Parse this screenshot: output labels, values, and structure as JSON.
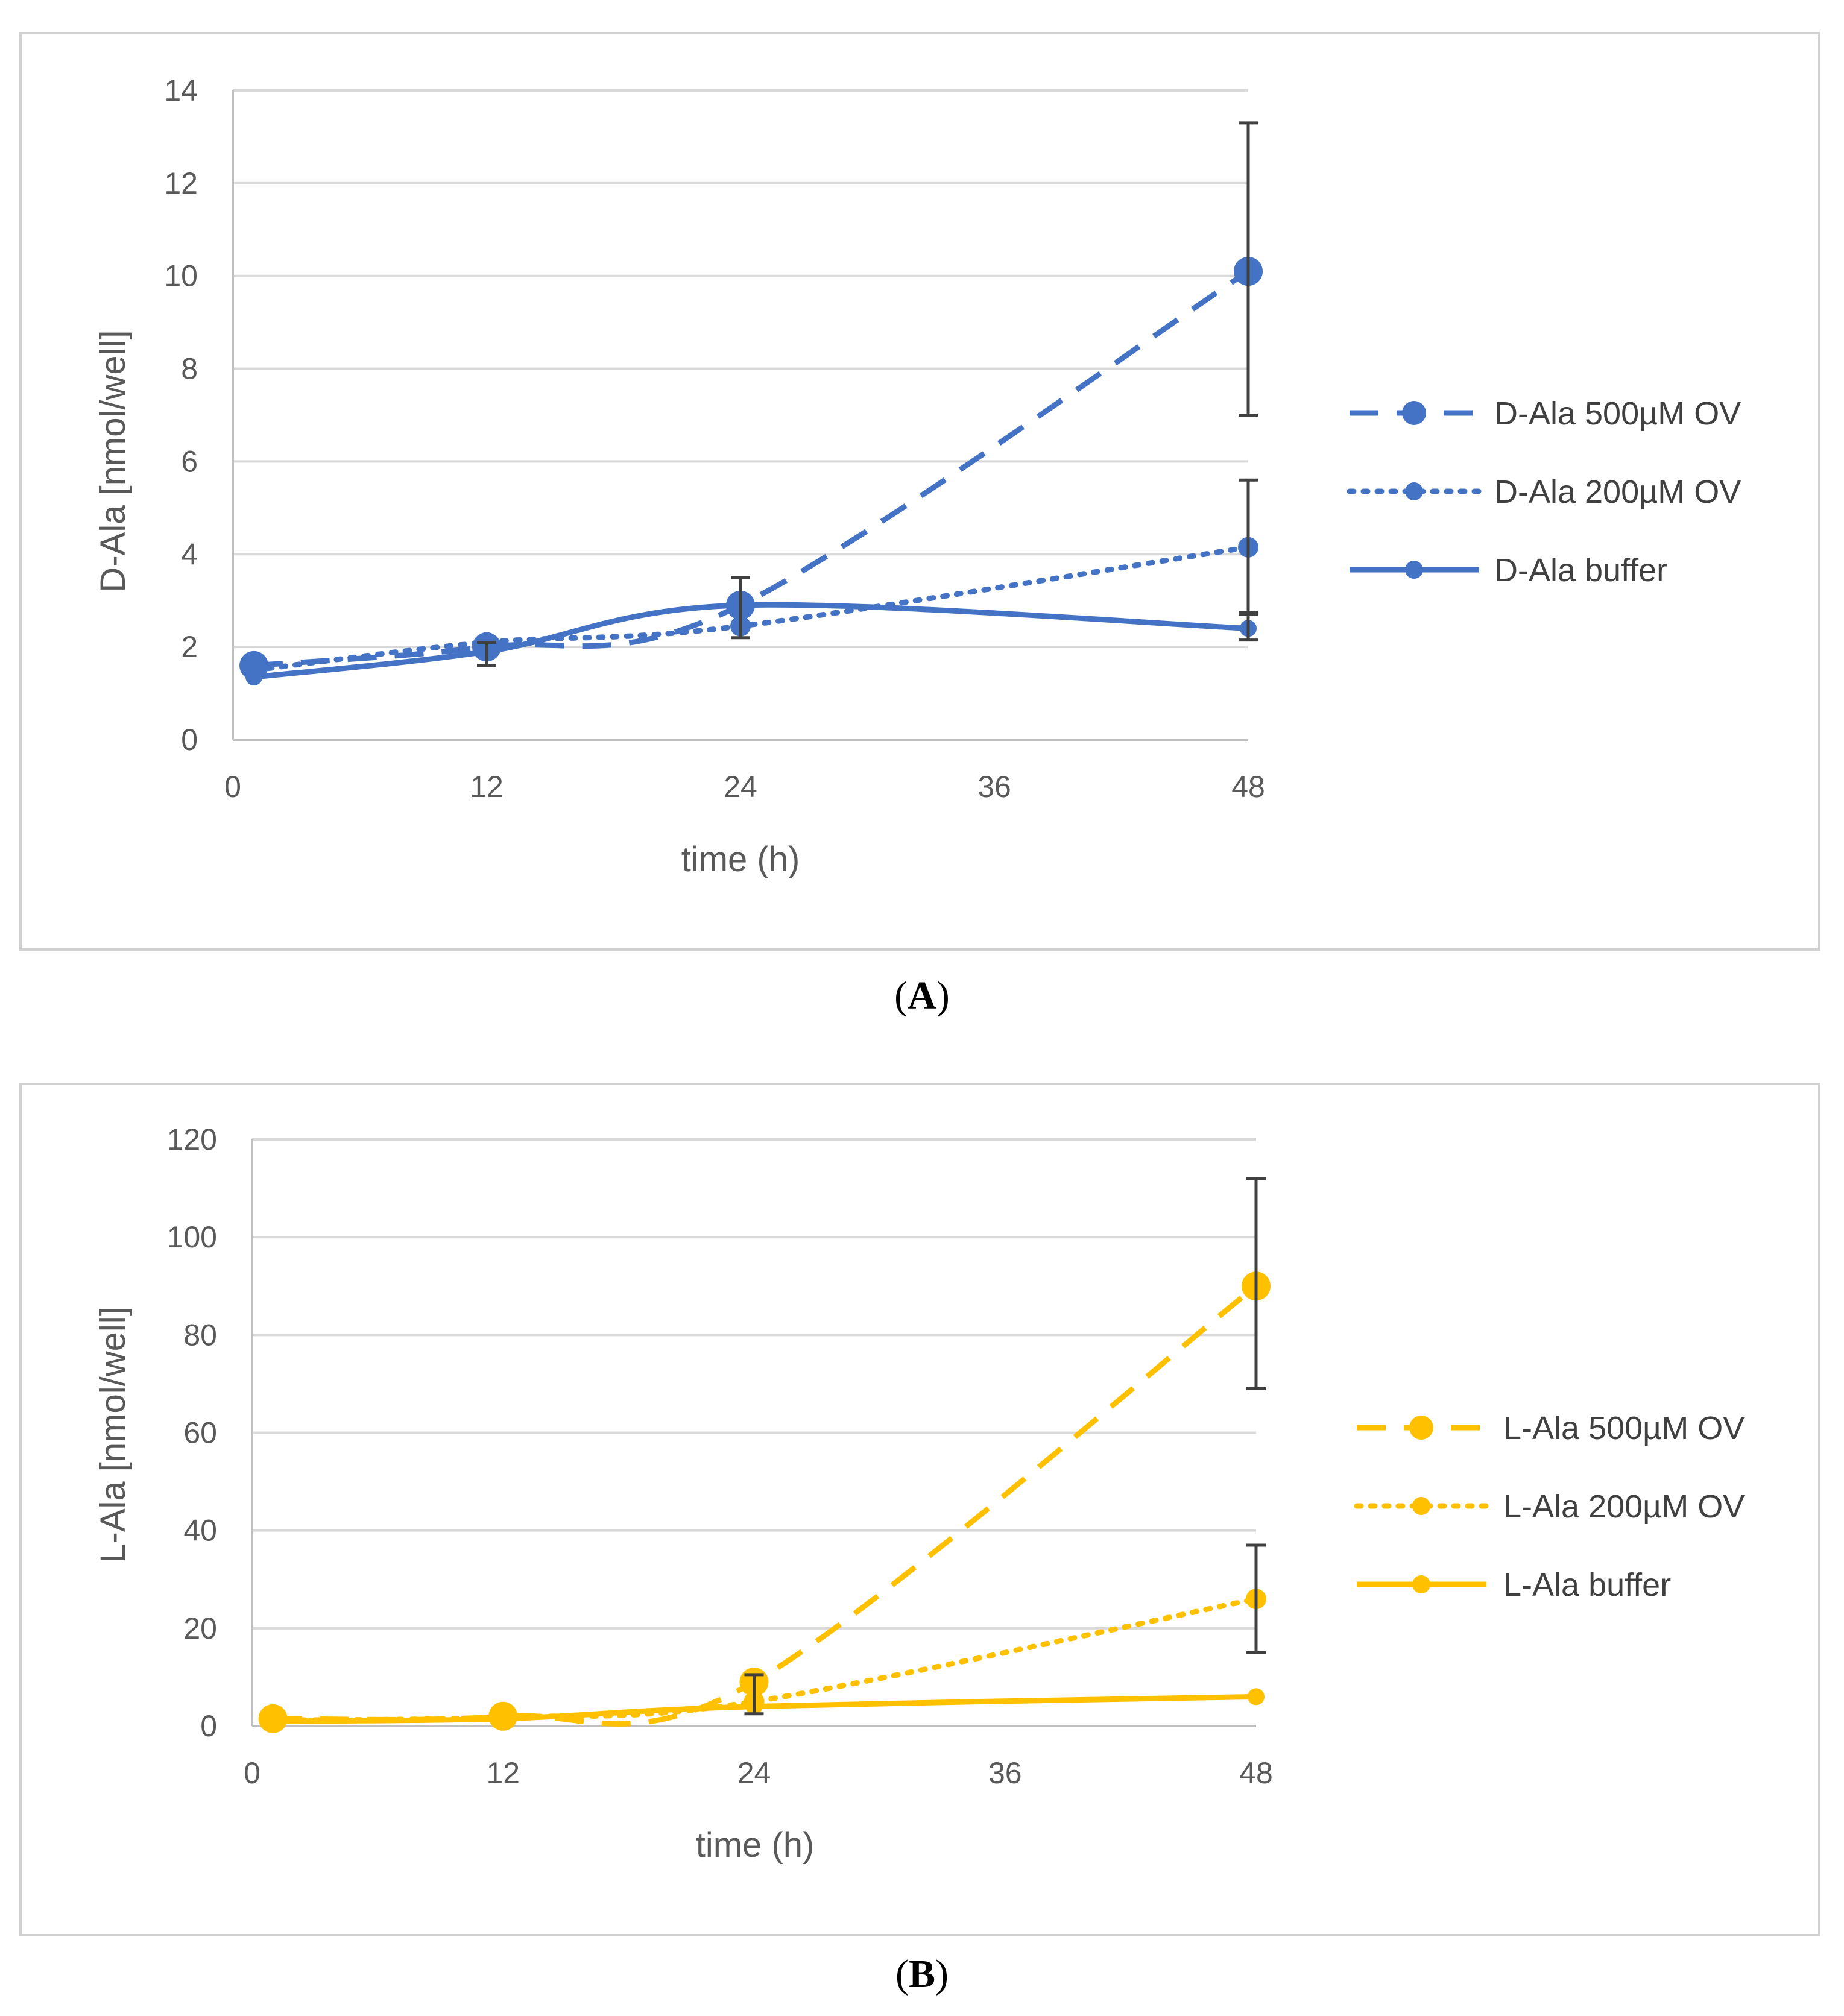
{
  "chart_data": [
    {
      "panel": "A",
      "caption_label": "A",
      "type": "line",
      "color": "#4472C4",
      "xlabel": "time (h)",
      "ylabel": "D-Ala [nmol/well]",
      "xlim": [
        0,
        48
      ],
      "ylim": [
        0,
        14
      ],
      "xticks": [
        0,
        12,
        24,
        36,
        48
      ],
      "yticks": [
        0,
        2,
        4,
        6,
        8,
        10,
        12,
        14
      ],
      "x": [
        1,
        12,
        24,
        48
      ],
      "series": [
        {
          "name": "D-Ala 500µM OV",
          "style": "dashed",
          "values": [
            1.6,
            2.0,
            2.9,
            10.1
          ],
          "error_low": [
            null,
            null,
            null,
            7.0
          ],
          "error_high": [
            null,
            null,
            null,
            13.3
          ]
        },
        {
          "name": "D-Ala 200µM OV",
          "style": "dotted",
          "values": [
            1.5,
            2.1,
            2.45,
            4.15
          ],
          "error_low": [
            null,
            null,
            null,
            2.75
          ],
          "error_high": [
            null,
            null,
            null,
            5.6
          ]
        },
        {
          "name": "D-Ala buffer",
          "style": "solid",
          "values": [
            1.35,
            1.9,
            2.9,
            2.4
          ],
          "error_low": [
            null,
            1.6,
            2.2,
            2.15
          ],
          "error_high": [
            null,
            2.1,
            3.5,
            2.7
          ]
        }
      ]
    },
    {
      "panel": "B",
      "caption_label": "B",
      "type": "line",
      "color": "#FFC000",
      "xlabel": "time (h)",
      "ylabel": "L-Ala [nmol/well]",
      "xlim": [
        0,
        48
      ],
      "ylim": [
        0,
        120
      ],
      "xticks": [
        0,
        12,
        24,
        36,
        48
      ],
      "yticks": [
        0,
        20,
        40,
        60,
        80,
        100,
        120
      ],
      "x": [
        1,
        12,
        24,
        48
      ],
      "series": [
        {
          "name": "L-Ala 500µM OV",
          "style": "dashed",
          "values": [
            1.5,
            2.0,
            9.0,
            90.0
          ],
          "error_low": [
            null,
            null,
            null,
            69.0
          ],
          "error_high": [
            null,
            null,
            null,
            112.0
          ]
        },
        {
          "name": "L-Ala 200µM OV",
          "style": "dotted",
          "values": [
            1.2,
            1.8,
            5.0,
            26.0
          ],
          "error_low": [
            null,
            null,
            null,
            15.0
          ],
          "error_high": [
            null,
            null,
            null,
            37.0
          ]
        },
        {
          "name": "L-Ala buffer",
          "style": "solid",
          "values": [
            1.0,
            1.5,
            4.0,
            6.0
          ],
          "error_low": [
            null,
            null,
            2.5,
            null
          ],
          "error_high": [
            null,
            null,
            10.5,
            null
          ]
        }
      ]
    }
  ]
}
